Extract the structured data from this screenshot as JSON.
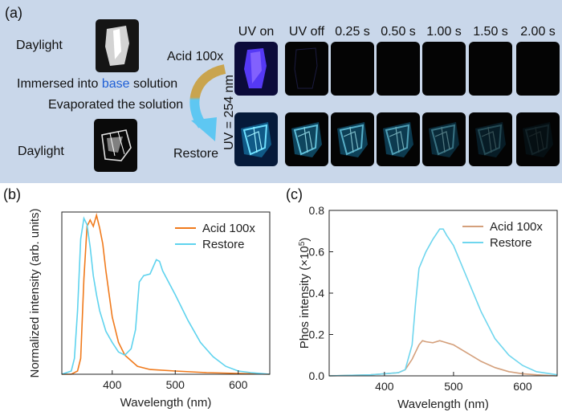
{
  "panel_a": {
    "label": "(a)",
    "daylight_top": "Daylight",
    "daylight_bottom": "Daylight",
    "immersed_prefix": "Immersed into ",
    "immersed_base": "base",
    "immersed_suffix": " solution",
    "evaporated": "Evaporated the solution",
    "uv_label": "UV = 254 nm",
    "row_acid": "Acid 100x",
    "row_restore": "Restore",
    "columns": [
      "UV on",
      "UV off",
      "0.25 s",
      "0.50 s",
      "1.00 s",
      "1.50 s",
      "2.00 s"
    ],
    "colors": {
      "background": "#c9d7ea",
      "base_word": "#1f5fd6",
      "arrow_top": "#c9a44e",
      "arrow_bottom": "#5ec7f2"
    }
  },
  "chart_data": [
    {
      "panel": "(b)",
      "type": "line",
      "title": "",
      "xlabel": "Wavelength (nm)",
      "ylabel": "Normalized intensity (arb. units)",
      "xlim": [
        320,
        650
      ],
      "ylim": [
        0,
        1.02
      ],
      "xticks": [
        400,
        500,
        600
      ],
      "yticks_shown": false,
      "grid": false,
      "legend": "top-right",
      "series": [
        {
          "name": "Acid 100x",
          "color": "#f07a1c",
          "x": [
            320,
            335,
            345,
            350,
            355,
            360,
            365,
            370,
            375,
            380,
            385,
            390,
            400,
            410,
            420,
            440,
            460,
            500,
            550,
            600,
            650
          ],
          "y": [
            0,
            0,
            0.02,
            0.1,
            0.6,
            0.93,
            0.97,
            0.93,
            1.0,
            0.92,
            0.82,
            0.65,
            0.36,
            0.2,
            0.12,
            0.05,
            0.03,
            0.02,
            0.01,
            0.005,
            0
          ]
        },
        {
          "name": "Restore",
          "color": "#5fd3ee",
          "x": [
            320,
            335,
            340,
            345,
            350,
            355,
            360,
            365,
            370,
            375,
            380,
            390,
            400,
            410,
            420,
            430,
            437,
            443,
            450,
            460,
            470,
            475,
            480,
            500,
            520,
            540,
            560,
            580,
            600,
            620,
            650
          ],
          "y": [
            0,
            0.02,
            0.1,
            0.4,
            0.85,
            0.98,
            0.94,
            0.8,
            0.62,
            0.5,
            0.4,
            0.27,
            0.2,
            0.14,
            0.12,
            0.16,
            0.28,
            0.58,
            0.62,
            0.63,
            0.72,
            0.71,
            0.65,
            0.5,
            0.34,
            0.2,
            0.11,
            0.05,
            0.02,
            0.01,
            0
          ]
        }
      ]
    },
    {
      "panel": "(c)",
      "type": "line",
      "title": "",
      "xlabel": "Wavelength (nm)",
      "ylabel": "Phos intensity (×10",
      "ylabel_exp": "5",
      "ylabel_close": ")",
      "xlim": [
        320,
        650
      ],
      "ylim": [
        0,
        0.8
      ],
      "xticks": [
        400,
        500,
        600
      ],
      "yticks": [
        0.0,
        0.2,
        0.4,
        0.6,
        0.8
      ],
      "grid": false,
      "legend": "top-right",
      "series": [
        {
          "name": "Acid 100x",
          "color": "#d4a07c",
          "x": [
            320,
            380,
            400,
            420,
            430,
            440,
            450,
            455,
            460,
            470,
            480,
            485,
            490,
            500,
            520,
            540,
            560,
            580,
            600,
            620,
            650
          ],
          "y": [
            0,
            0.005,
            0.01,
            0.015,
            0.03,
            0.08,
            0.15,
            0.17,
            0.165,
            0.16,
            0.17,
            0.165,
            0.16,
            0.15,
            0.11,
            0.07,
            0.04,
            0.02,
            0.01,
            0.005,
            0
          ]
        },
        {
          "name": "Restore",
          "color": "#6fd6ee",
          "x": [
            320,
            380,
            400,
            420,
            430,
            440,
            445,
            450,
            460,
            470,
            480,
            485,
            490,
            500,
            520,
            540,
            560,
            580,
            600,
            620,
            650
          ],
          "y": [
            0,
            0.005,
            0.01,
            0.015,
            0.03,
            0.15,
            0.35,
            0.52,
            0.6,
            0.66,
            0.71,
            0.71,
            0.68,
            0.63,
            0.47,
            0.31,
            0.18,
            0.1,
            0.05,
            0.02,
            0.005
          ]
        }
      ]
    }
  ]
}
